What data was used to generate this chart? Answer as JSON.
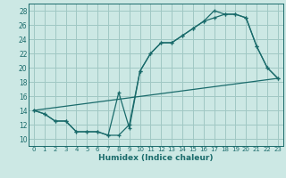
{
  "xlabel": "Humidex (Indice chaleur)",
  "xlim": [
    -0.5,
    23.5
  ],
  "ylim": [
    9,
    29
  ],
  "xticks": [
    0,
    1,
    2,
    3,
    4,
    5,
    6,
    7,
    8,
    9,
    10,
    11,
    12,
    13,
    14,
    15,
    16,
    17,
    18,
    19,
    20,
    21,
    22,
    23
  ],
  "yticks": [
    10,
    12,
    14,
    16,
    18,
    20,
    22,
    24,
    26,
    28
  ],
  "background_color": "#cce8e4",
  "grid_color": "#a0c8c4",
  "line_color": "#1a6b6b",
  "line1_x": [
    0,
    1,
    2,
    3,
    4,
    5,
    6,
    7,
    8,
    9,
    10,
    11,
    12,
    13,
    14,
    15,
    16,
    17,
    18,
    19,
    20,
    21,
    22,
    23
  ],
  "line1_y": [
    14,
    13.5,
    12.5,
    12.5,
    11,
    11,
    11,
    10.5,
    16.5,
    11.5,
    19.5,
    22,
    23.5,
    23.5,
    24.5,
    25.5,
    26.5,
    28,
    27.5,
    27.5,
    27,
    23,
    20,
    18.5
  ],
  "line2_x": [
    0,
    1,
    2,
    3,
    4,
    5,
    6,
    7,
    8,
    9,
    10,
    11,
    12,
    13,
    14,
    15,
    16,
    17,
    18,
    19,
    20,
    21,
    22,
    23
  ],
  "line2_y": [
    14,
    13.5,
    12.5,
    12.5,
    11,
    11,
    11,
    10.5,
    10.5,
    12,
    19.5,
    22,
    23.5,
    23.5,
    24.5,
    25.5,
    26.5,
    27,
    27.5,
    27.5,
    27,
    23,
    20,
    18.5
  ],
  "line3_x": [
    0,
    23
  ],
  "line3_y": [
    14,
    18.5
  ]
}
